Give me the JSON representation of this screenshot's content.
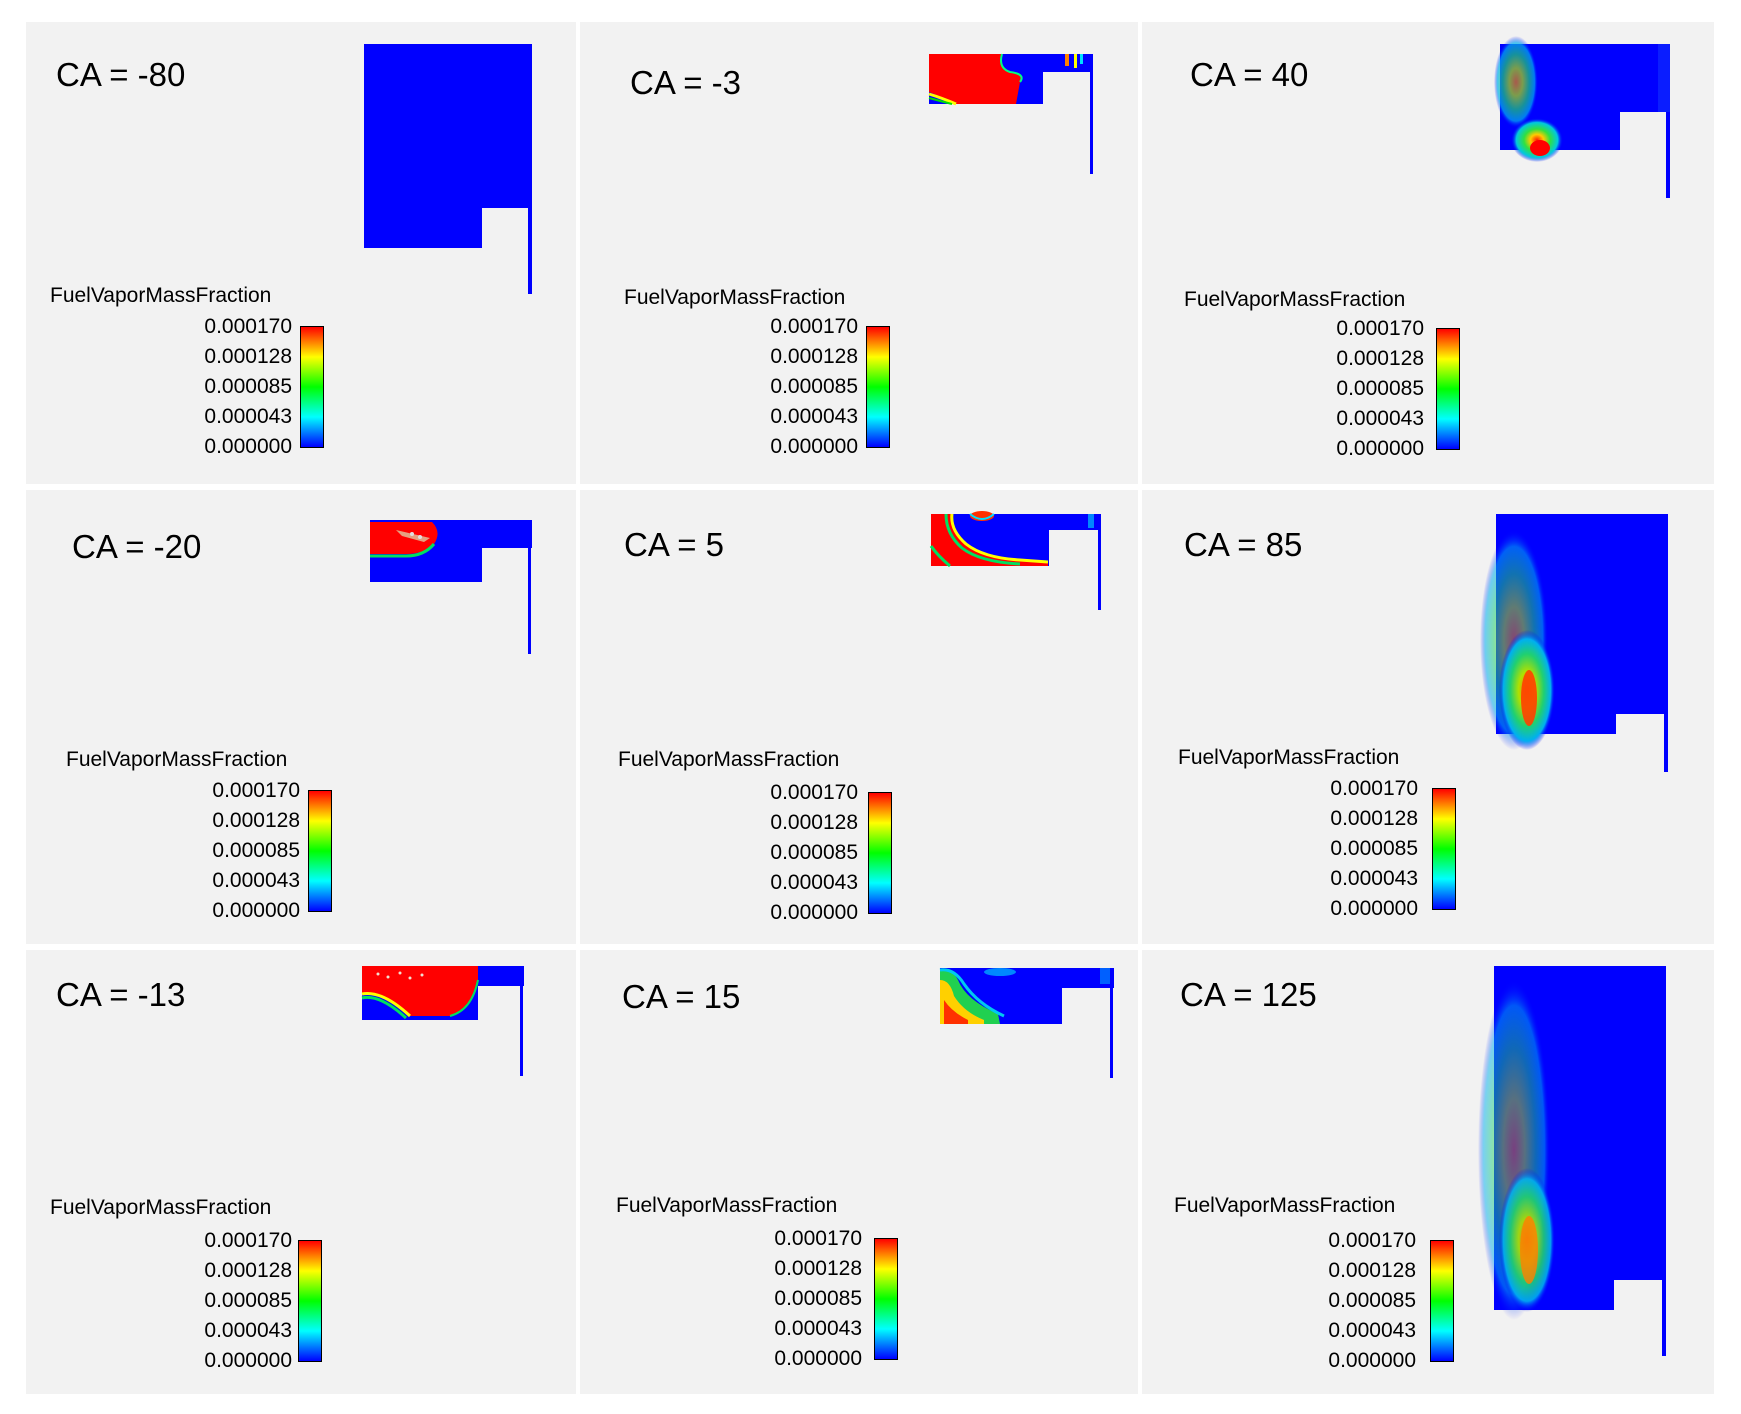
{
  "colorbar": {
    "gradient": [
      "#0000ff",
      "#00ffff",
      "#00ff00",
      "#ffff00",
      "#ff0000"
    ]
  },
  "panels": [
    {
      "ca_label": "CA = -80",
      "variable": "FuelVaporMassFraction",
      "ticks": [
        "0.000170",
        "0.000128",
        "0.000085",
        "0.000043",
        "0.000000"
      ]
    },
    {
      "ca_label": "CA = -3",
      "variable": "FuelVaporMassFraction",
      "ticks": [
        "0.000170",
        "0.000128",
        "0.000085",
        "0.000043",
        "0.000000"
      ]
    },
    {
      "ca_label": "CA = 40",
      "variable": "FuelVaporMassFraction",
      "ticks": [
        "0.000170",
        "0.000128",
        "0.000085",
        "0.000043",
        "0.000000"
      ]
    },
    {
      "ca_label": "CA = -20",
      "variable": "FuelVaporMassFraction",
      "ticks": [
        "0.000170",
        "0.000128",
        "0.000085",
        "0.000043",
        "0.000000"
      ]
    },
    {
      "ca_label": "CA = 5",
      "variable": "FuelVaporMassFraction",
      "ticks": [
        "0.000170",
        "0.000128",
        "0.000085",
        "0.000043",
        "0.000000"
      ]
    },
    {
      "ca_label": "CA = 85",
      "variable": "FuelVaporMassFraction",
      "ticks": [
        "0.000170",
        "0.000128",
        "0.000085",
        "0.000043",
        "0.000000"
      ]
    },
    {
      "ca_label": "CA = -13",
      "variable": "FuelVaporMassFraction",
      "ticks": [
        "0.000170",
        "0.000128",
        "0.000085",
        "0.000043",
        "0.000000"
      ]
    },
    {
      "ca_label": "CA = 15",
      "variable": "FuelVaporMassFraction",
      "ticks": [
        "0.000170",
        "0.000128",
        "0.000085",
        "0.000043",
        "0.000000"
      ]
    },
    {
      "ca_label": "CA = 125",
      "variable": "FuelVaporMassFraction",
      "ticks": [
        "0.000170",
        "0.000128",
        "0.000085",
        "0.000043",
        "0.000000"
      ]
    }
  ]
}
